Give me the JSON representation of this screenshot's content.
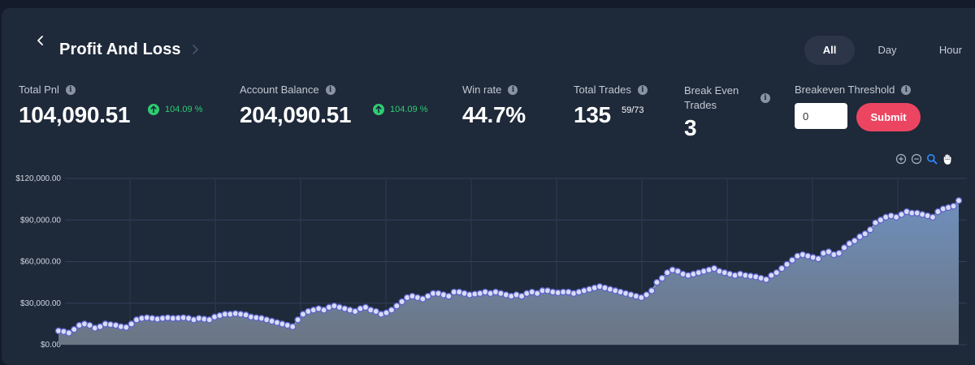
{
  "header": {
    "title": "Profit And Loss"
  },
  "range_tabs": [
    "All",
    "Day",
    "Hour"
  ],
  "stats": {
    "total_pnl": {
      "label": "Total Pnl",
      "value": "104,090.51",
      "change": "104.09 %"
    },
    "account_balance": {
      "label": "Account Balance",
      "value": "204,090.51",
      "change": "104.09 %"
    },
    "win_rate": {
      "label": "Win rate",
      "value": "44.7%"
    },
    "total_trades": {
      "label": "Total Trades",
      "value": "135",
      "ratio": "59/73"
    },
    "break_even": {
      "label_line1": "Break Even",
      "label_line2": "Trades",
      "value": "3"
    },
    "threshold": {
      "label": "Breakeven Threshold",
      "input_value": "0",
      "submit_label": "Submit"
    }
  },
  "toolbar_icons": [
    "zoom-in-icon",
    "zoom-out-icon",
    "magnify-icon",
    "pan-hand-icon"
  ],
  "colors": {
    "area_top": "#6f8fbc",
    "area_bottom": "#6b7583",
    "line": "#8fa8d8",
    "marker": "#d9dcf7",
    "positive": "#2ecc71",
    "submit": "#ec4561"
  },
  "chart_data": {
    "type": "area",
    "ylim": [
      0,
      120000
    ],
    "y_ticks": [
      "$0.00",
      "$30,000.00",
      "$60,000.00",
      "$90,000.00",
      "$120,000.00"
    ],
    "grid": true,
    "values": [
      10000,
      9500,
      8500,
      11000,
      14000,
      15000,
      14000,
      12000,
      13000,
      15000,
      14500,
      14000,
      13000,
      12500,
      15000,
      18000,
      19000,
      19500,
      19000,
      18500,
      19000,
      19500,
      19000,
      19200,
      19500,
      19000,
      18000,
      19000,
      18500,
      18000,
      20000,
      21000,
      22000,
      22000,
      22500,
      22000,
      21500,
      20000,
      19500,
      19000,
      18000,
      17000,
      16000,
      15000,
      14000,
      13000,
      18000,
      22000,
      24000,
      25000,
      26000,
      25000,
      27000,
      28000,
      27000,
      26000,
      25000,
      24000,
      26000,
      27000,
      25000,
      24000,
      22000,
      23000,
      25000,
      28000,
      31000,
      34000,
      35000,
      34000,
      33000,
      35000,
      37000,
      37000,
      36000,
      35000,
      38000,
      38000,
      37000,
      36000,
      36500,
      37000,
      38000,
      37000,
      38000,
      37000,
      36000,
      35000,
      36000,
      35000,
      37000,
      38000,
      37000,
      39000,
      39000,
      38000,
      37500,
      38000,
      38000,
      37000,
      38000,
      39000,
      40000,
      41000,
      42000,
      41000,
      40000,
      39000,
      38000,
      37000,
      36000,
      35000,
      34000,
      36000,
      39000,
      45000,
      48000,
      52000,
      54000,
      53000,
      51000,
      50000,
      51000,
      52000,
      53000,
      54000,
      55000,
      53000,
      52000,
      51000,
      50000,
      51000,
      50000,
      49500,
      49000,
      48000,
      47000,
      50000,
      52000,
      55000,
      58000,
      61000,
      64000,
      65000,
      64000,
      63000,
      62000,
      66000,
      67000,
      65000,
      66000,
      70000,
      73000,
      75000,
      78000,
      80000,
      83000,
      88000,
      90000,
      92000,
      93000,
      92000,
      94000,
      96000,
      95000,
      95000,
      94000,
      93000,
      92000,
      96000,
      98000,
      99000,
      100000,
      104000
    ]
  }
}
